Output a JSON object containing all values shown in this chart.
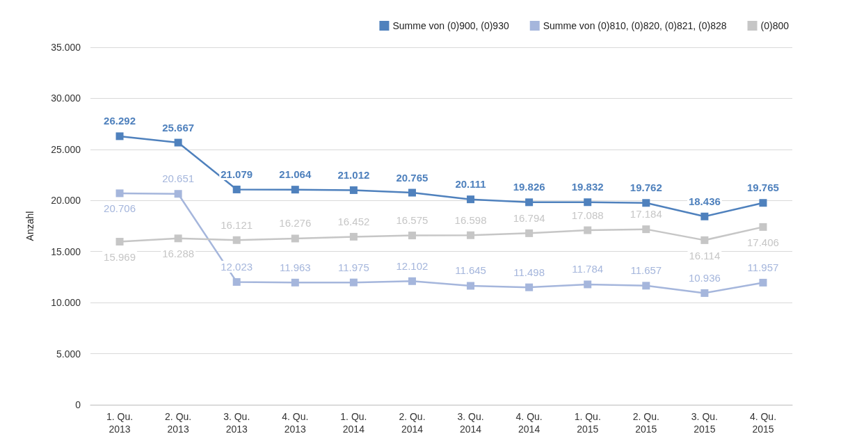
{
  "chart_data": {
    "type": "line",
    "ylabel": "Anzahl",
    "categories": [
      "1. Qu.\n2013",
      "2. Qu.\n2013",
      "3. Qu.\n2013",
      "4. Qu.\n2013",
      "1. Qu.\n2014",
      "2. Qu.\n2014",
      "3. Qu.\n2014",
      "4. Qu.\n2014",
      "1. Qu.\n2015",
      "2. Qu.\n2015",
      "3. Qu.\n2015",
      "4. Qu.\n2015"
    ],
    "series": [
      {
        "name": "Summe von (0)900, (0)930",
        "color": "#4f81bd",
        "values": [
          26292,
          25667,
          21079,
          21064,
          21012,
          20765,
          20111,
          19826,
          19832,
          19762,
          18436,
          19765
        ],
        "value_labels": [
          "26.292",
          "25.667",
          "21.079",
          "21.064",
          "21.012",
          "20.765",
          "20.111",
          "19.826",
          "19.832",
          "19.762",
          "18.436",
          "19.765"
        ]
      },
      {
        "name": "Summe von (0)810, (0)820, (0)821, (0)828",
        "color": "#a5b6dc",
        "values": [
          20706,
          20651,
          12023,
          11963,
          11975,
          12102,
          11645,
          11498,
          11784,
          11657,
          10936,
          11957
        ],
        "value_labels": [
          "20.706",
          "20.651",
          "12.023",
          "11.963",
          "11.975",
          "12.102",
          "11.645",
          "11.498",
          "11.784",
          "11.657",
          "10.936",
          "11.957"
        ]
      },
      {
        "name": "(0)800",
        "color": "#c6c6c6",
        "values": [
          15969,
          16288,
          16121,
          16276,
          16452,
          16575,
          16598,
          16794,
          17088,
          17184,
          16114,
          17406
        ],
        "value_labels": [
          "15.969",
          "16.288",
          "16.121",
          "16.276",
          "16.452",
          "16.575",
          "16.598",
          "16.794",
          "17.088",
          "17.184",
          "16.114",
          "17.406"
        ]
      }
    ],
    "ylim": [
      0,
      35000
    ],
    "yticks": [
      {
        "value": 0,
        "label": "0"
      },
      {
        "value": 5000,
        "label": "5.000"
      },
      {
        "value": 10000,
        "label": "10.000"
      },
      {
        "value": 15000,
        "label": "15.000"
      },
      {
        "value": 20000,
        "label": "20.000"
      },
      {
        "value": 25000,
        "label": "25.000"
      },
      {
        "value": 30000,
        "label": "30.000"
      },
      {
        "value": 35000,
        "label": "35.000"
      }
    ],
    "grid": "y",
    "legend": "top right",
    "marker": "square",
    "line_style": "solid"
  }
}
